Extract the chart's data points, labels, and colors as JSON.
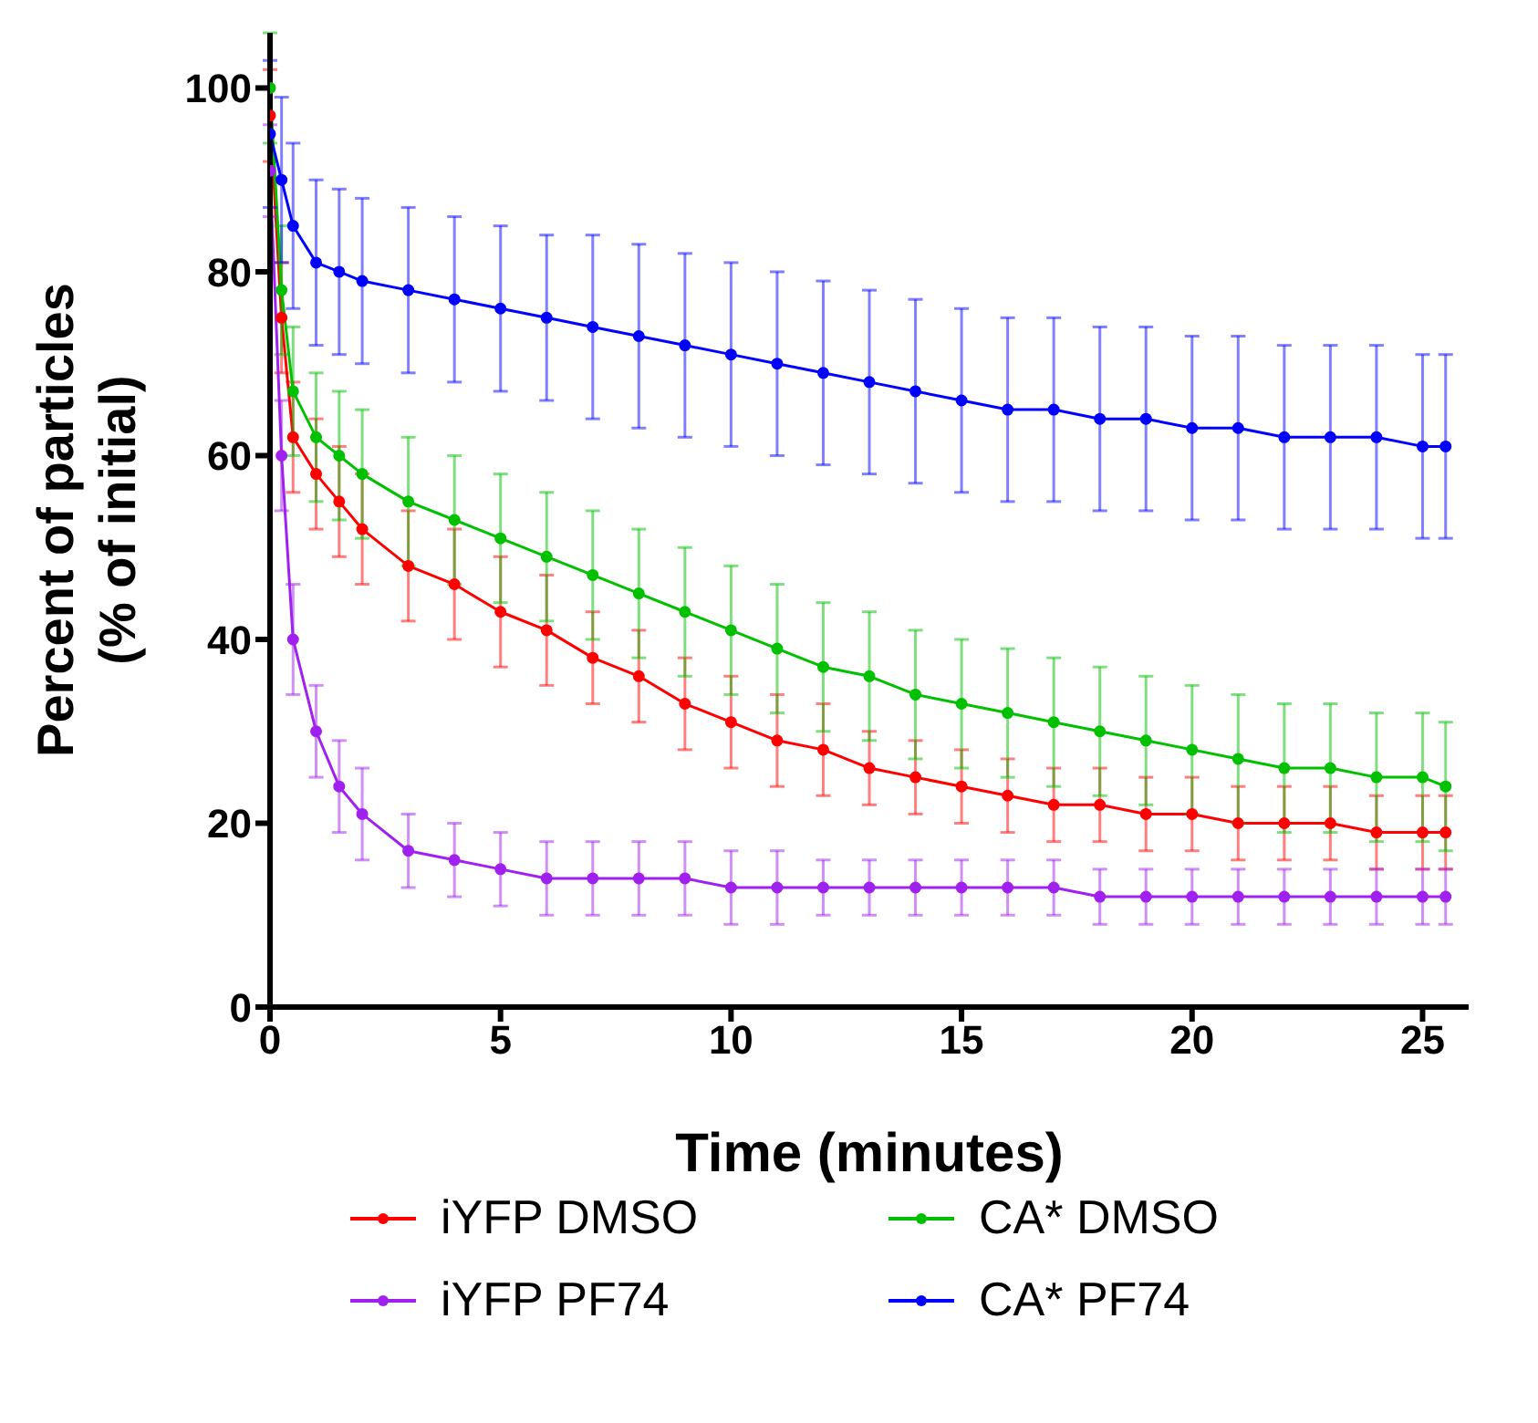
{
  "chart_data": {
    "type": "line",
    "xlabel": "Time (minutes)",
    "ylabel": "Percent of particles\n(% of initial)",
    "x": [
      0,
      0.25,
      0.5,
      1,
      1.5,
      2,
      3,
      4,
      5,
      6,
      7,
      8,
      9,
      10,
      11,
      12,
      13,
      14,
      15,
      16,
      17,
      18,
      19,
      20,
      21,
      22,
      23,
      24,
      25,
      25.5
    ],
    "xlim": [
      0,
      26
    ],
    "xticks": [
      0,
      5,
      10,
      15,
      20,
      25
    ],
    "ylim": [
      0,
      106
    ],
    "yticks": [
      0,
      20,
      40,
      60,
      80,
      100
    ],
    "grid": false,
    "legend": "bottom",
    "marker": "circle",
    "line_style": "solid",
    "series": [
      {
        "name": "iYFP DMSO",
        "color": "#ff0000",
        "values": [
          97,
          75,
          62,
          58,
          55,
          52,
          48,
          46,
          43,
          41,
          38,
          36,
          33,
          31,
          29,
          28,
          26,
          25,
          24,
          23,
          22,
          22,
          21,
          21,
          20,
          20,
          20,
          19,
          19,
          19
        ],
        "errors": [
          5,
          6,
          6,
          6,
          6,
          6,
          6,
          6,
          6,
          6,
          5,
          5,
          5,
          5,
          5,
          5,
          4,
          4,
          4,
          4,
          4,
          4,
          4,
          4,
          4,
          4,
          4,
          4,
          4,
          4
        ]
      },
      {
        "name": "CA* DMSO",
        "color": "#00c000",
        "values": [
          100,
          78,
          67,
          62,
          60,
          58,
          55,
          53,
          51,
          49,
          47,
          45,
          43,
          41,
          39,
          37,
          36,
          34,
          33,
          32,
          31,
          30,
          29,
          28,
          27,
          26,
          26,
          25,
          25,
          24
        ],
        "errors": [
          6,
          7,
          7,
          7,
          7,
          7,
          7,
          7,
          7,
          7,
          7,
          7,
          7,
          7,
          7,
          7,
          7,
          7,
          7,
          7,
          7,
          7,
          7,
          7,
          7,
          7,
          7,
          7,
          7,
          7
        ]
      },
      {
        "name": "iYFP PF74",
        "color": "#a020f0",
        "values": [
          91,
          60,
          40,
          30,
          24,
          21,
          17,
          16,
          15,
          14,
          14,
          14,
          14,
          13,
          13,
          13,
          13,
          13,
          13,
          13,
          13,
          12,
          12,
          12,
          12,
          12,
          12,
          12,
          12,
          12
        ],
        "errors": [
          5,
          6,
          6,
          5,
          5,
          5,
          4,
          4,
          4,
          4,
          4,
          4,
          4,
          4,
          4,
          3,
          3,
          3,
          3,
          3,
          3,
          3,
          3,
          3,
          3,
          3,
          3,
          3,
          3,
          3
        ]
      },
      {
        "name": "CA* PF74",
        "color": "#0000ff",
        "values": [
          95,
          90,
          85,
          81,
          80,
          79,
          78,
          77,
          76,
          75,
          74,
          73,
          72,
          71,
          70,
          69,
          68,
          67,
          66,
          65,
          65,
          64,
          64,
          63,
          63,
          62,
          62,
          62,
          61,
          61
        ],
        "errors": [
          8,
          9,
          9,
          9,
          9,
          9,
          9,
          9,
          9,
          9,
          10,
          10,
          10,
          10,
          10,
          10,
          10,
          10,
          10,
          10,
          10,
          10,
          10,
          10,
          10,
          10,
          10,
          10,
          10,
          10
        ]
      }
    ]
  }
}
